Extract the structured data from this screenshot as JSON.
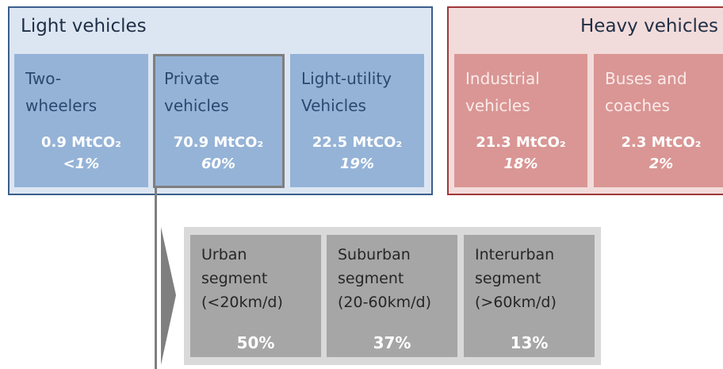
{
  "light": {
    "title": "Light vehicles",
    "boxes": [
      {
        "label": [
          "Two-",
          "wheelers"
        ],
        "emission": "0.9 MtCO₂",
        "share": "<1%"
      },
      {
        "label": [
          "Private",
          "vehicles"
        ],
        "emission": "70.9 MtCO₂",
        "share": "60%"
      },
      {
        "label": [
          "Light-utility",
          "Vehicles"
        ],
        "emission": "22.5 MtCO₂",
        "share": "19%"
      }
    ]
  },
  "heavy": {
    "title": "Heavy vehicles",
    "boxes": [
      {
        "label": [
          "Industrial",
          "vehicles"
        ],
        "emission": "21.3 MtCO₂",
        "share": "18%"
      },
      {
        "label": [
          "Buses and",
          "coaches"
        ],
        "emission": "2.3 MtCO₂",
        "share": "2%"
      }
    ]
  },
  "segments": [
    {
      "label": [
        "Urban",
        "segment",
        "(<20km/d)"
      ],
      "share": "50%"
    },
    {
      "label": [
        "Suburban",
        "segment",
        "(20-60km/d)"
      ],
      "share": "37%"
    },
    {
      "label": [
        "Interurban",
        "segment",
        "(>60km/d)"
      ],
      "share": "13%"
    }
  ]
}
